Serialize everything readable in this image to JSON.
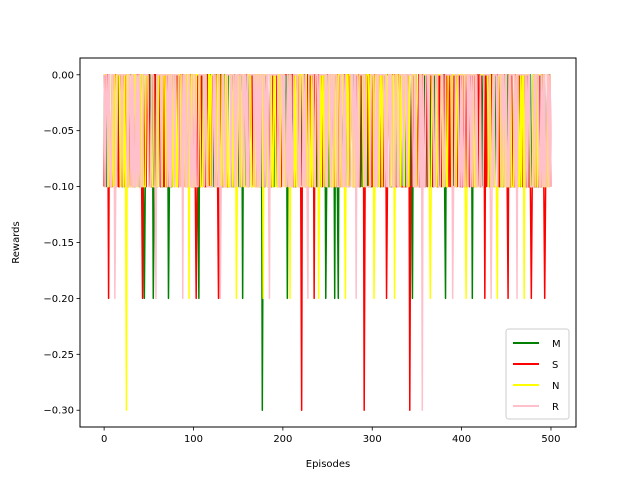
{
  "chart_data": {
    "type": "line",
    "title": "",
    "xlabel": "Episodes",
    "ylabel": "Rewards",
    "xlim": [
      -27,
      528
    ],
    "ylim": [
      -0.315,
      0.015
    ],
    "xticks": [
      0,
      100,
      200,
      300,
      400,
      500
    ],
    "xtick_labels": [
      "0",
      "100",
      "200",
      "300",
      "400",
      "500"
    ],
    "yticks": [
      0.0,
      -0.05,
      -0.1,
      -0.15,
      -0.2,
      -0.25,
      -0.3
    ],
    "ytick_labels": [
      "0.00",
      "−0.05",
      "−0.10",
      "−0.15",
      "−0.20",
      "−0.25",
      "−0.30"
    ],
    "grid": false,
    "legend_position": "lower-right",
    "episodes": 500,
    "base_pattern": "dense alternation between 0.00 and -0.10",
    "series": [
      {
        "name": "M",
        "color": "#008000",
        "dips": [
          {
            "x": 45,
            "y": -0.2
          },
          {
            "x": 55,
            "y": -0.2
          },
          {
            "x": 72,
            "y": -0.2
          },
          {
            "x": 106,
            "y": -0.2
          },
          {
            "x": 155,
            "y": -0.2
          },
          {
            "x": 177,
            "y": -0.3
          },
          {
            "x": 205,
            "y": -0.2
          },
          {
            "x": 248,
            "y": -0.2
          },
          {
            "x": 258,
            "y": -0.2
          },
          {
            "x": 262,
            "y": -0.2
          },
          {
            "x": 345,
            "y": -0.2
          },
          {
            "x": 382,
            "y": -0.2
          },
          {
            "x": 412,
            "y": -0.2
          }
        ]
      },
      {
        "name": "S",
        "color": "#ff0000",
        "dips": [
          {
            "x": 5,
            "y": -0.2
          },
          {
            "x": 43,
            "y": -0.2
          },
          {
            "x": 103,
            "y": -0.2
          },
          {
            "x": 128,
            "y": -0.2
          },
          {
            "x": 221,
            "y": -0.3
          },
          {
            "x": 235,
            "y": -0.2
          },
          {
            "x": 291,
            "y": -0.3
          },
          {
            "x": 316,
            "y": -0.2
          },
          {
            "x": 342,
            "y": -0.3
          },
          {
            "x": 426,
            "y": -0.2
          },
          {
            "x": 452,
            "y": -0.2
          },
          {
            "x": 478,
            "y": -0.2
          },
          {
            "x": 493,
            "y": -0.2
          }
        ]
      },
      {
        "name": "N",
        "color": "#ffff00",
        "dips": [
          {
            "x": 25,
            "y": -0.3
          },
          {
            "x": 95,
            "y": -0.2
          },
          {
            "x": 148,
            "y": -0.2
          },
          {
            "x": 178,
            "y": -0.2
          },
          {
            "x": 208,
            "y": -0.2
          },
          {
            "x": 240,
            "y": -0.2
          },
          {
            "x": 270,
            "y": -0.2
          },
          {
            "x": 302,
            "y": -0.2
          },
          {
            "x": 325,
            "y": -0.2
          },
          {
            "x": 365,
            "y": -0.2
          },
          {
            "x": 405,
            "y": -0.2
          },
          {
            "x": 440,
            "y": -0.2
          },
          {
            "x": 470,
            "y": -0.2
          }
        ]
      },
      {
        "name": "R",
        "color": "#ffc0cb",
        "dips": [
          {
            "x": 12,
            "y": -0.2
          },
          {
            "x": 58,
            "y": -0.2
          },
          {
            "x": 88,
            "y": -0.2
          },
          {
            "x": 130,
            "y": -0.2
          },
          {
            "x": 185,
            "y": -0.2
          },
          {
            "x": 228,
            "y": -0.2
          },
          {
            "x": 282,
            "y": -0.2
          },
          {
            "x": 356,
            "y": -0.3
          },
          {
            "x": 390,
            "y": -0.2
          },
          {
            "x": 433,
            "y": -0.2
          },
          {
            "x": 462,
            "y": -0.2
          }
        ]
      }
    ]
  }
}
